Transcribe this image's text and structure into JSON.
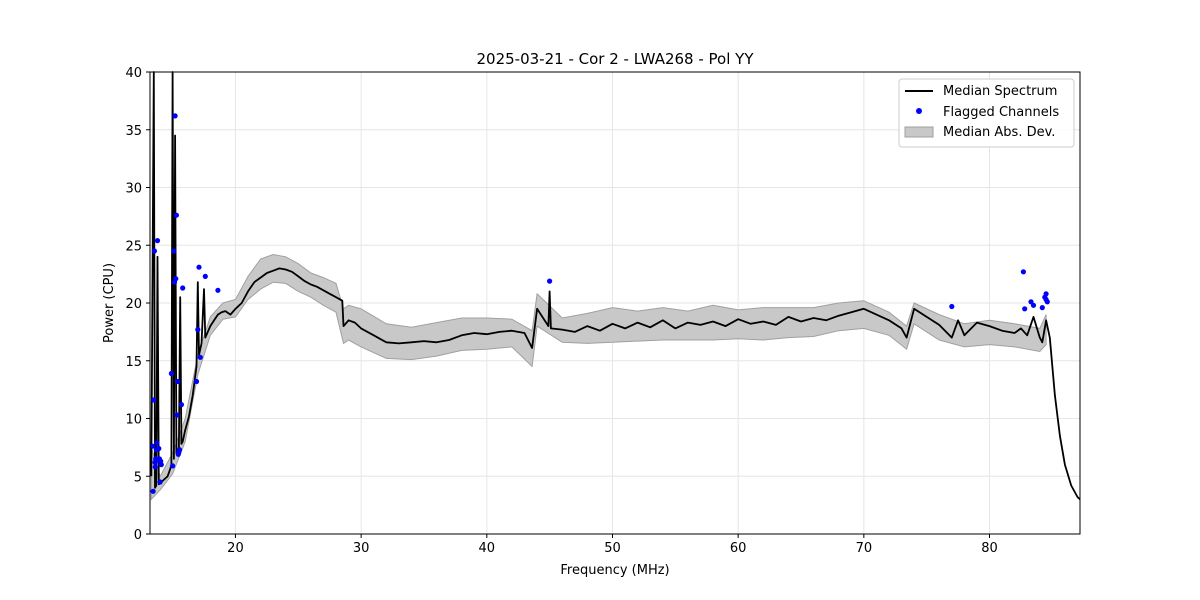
{
  "chart_data": {
    "type": "line",
    "title": "2025-03-21 - Cor 2 - LWA268 - Pol YY",
    "xlabel": "Frequency (MHz)",
    "ylabel": "Power (CPU)",
    "xlim": [
      13.2,
      87.2
    ],
    "ylim": [
      0,
      40
    ],
    "xticks": [
      20,
      30,
      40,
      50,
      60,
      70,
      80
    ],
    "yticks": [
      0,
      5,
      10,
      15,
      20,
      25,
      30,
      35,
      40
    ],
    "grid": true,
    "legend_position": "top-right",
    "legend": {
      "median": "Median Spectrum",
      "flagged": "Flagged Channels",
      "mad": "Median Abs. Dev."
    },
    "colors": {
      "median": "#000000",
      "flagged": "#0000ff",
      "mad": "#c8c8c8",
      "mad_edge": "#a0a0a0",
      "grid": "#e6e6e6"
    },
    "series": [
      {
        "name": "Median Spectrum",
        "x": [
          13.3,
          13.5,
          13.6,
          13.7,
          13.8,
          13.9,
          14.0,
          14.1,
          14.2,
          14.4,
          14.6,
          14.8,
          14.9,
          15.0,
          15.1,
          15.2,
          15.3,
          15.4,
          15.5,
          15.6,
          15.7,
          15.8,
          16.0,
          16.3,
          16.6,
          16.9,
          17.0,
          17.1,
          17.3,
          17.5,
          17.6,
          17.8,
          18.0,
          18.3,
          18.6,
          18.9,
          19.2,
          19.6,
          20.0,
          20.5,
          21.0,
          21.5,
          22.0,
          22.5,
          23.0,
          23.5,
          24.0,
          24.5,
          25.0,
          25.5,
          26.0,
          26.5,
          27.0,
          27.5,
          28.0,
          28.5,
          28.6,
          29.0,
          29.5,
          30.0,
          31.0,
          32.0,
          33.0,
          34.0,
          35.0,
          36.0,
          37.0,
          38.0,
          39.0,
          40.0,
          41.0,
          42.0,
          43.0,
          43.6,
          44.0,
          44.9,
          45.0,
          45.1,
          46.0,
          47.0,
          48.0,
          49.0,
          50.0,
          51.0,
          52.0,
          53.0,
          54.0,
          55.0,
          56.0,
          57.0,
          58.0,
          59.0,
          60.0,
          61.0,
          62.0,
          63.0,
          64.0,
          65.0,
          66.0,
          67.0,
          68.0,
          69.0,
          70.0,
          71.0,
          72.0,
          73.0,
          73.4,
          74.0,
          75.0,
          76.0,
          77.0,
          77.5,
          78.0,
          79.0,
          80.0,
          81.0,
          82.0,
          82.5,
          83.0,
          83.5,
          84.0,
          84.2,
          84.5,
          84.8,
          85.2,
          85.6,
          86.0,
          86.5,
          87.0,
          87.2
        ],
        "values": [
          5.0,
          40.0,
          4.0,
          4.2,
          24.0,
          4.3,
          4.4,
          4.5,
          4.6,
          4.8,
          5.0,
          5.6,
          6.0,
          40.0,
          6.5,
          34.5,
          7.0,
          7.2,
          7.5,
          20.5,
          7.8,
          8.0,
          9.0,
          10.2,
          12.0,
          14.5,
          21.8,
          15.5,
          16.5,
          21.2,
          17.0,
          17.5,
          18.0,
          18.5,
          19.0,
          19.2,
          19.3,
          19.0,
          19.5,
          20.0,
          21.0,
          21.8,
          22.2,
          22.6,
          22.8,
          23.0,
          22.9,
          22.7,
          22.3,
          21.9,
          21.6,
          21.4,
          21.1,
          20.8,
          20.5,
          20.2,
          18.0,
          18.5,
          18.3,
          17.8,
          17.2,
          16.6,
          16.5,
          16.6,
          16.7,
          16.6,
          16.8,
          17.2,
          17.4,
          17.3,
          17.5,
          17.6,
          17.4,
          16.1,
          19.5,
          18.0,
          21.0,
          17.8,
          17.7,
          17.5,
          18.0,
          17.6,
          18.2,
          17.8,
          18.3,
          17.9,
          18.5,
          17.8,
          18.3,
          18.1,
          18.4,
          18.0,
          18.6,
          18.2,
          18.4,
          18.1,
          18.8,
          18.4,
          18.7,
          18.5,
          18.9,
          19.2,
          19.5,
          19.0,
          18.5,
          17.8,
          17.0,
          19.5,
          18.8,
          18.1,
          17.0,
          18.5,
          17.2,
          18.3,
          18.0,
          17.6,
          17.4,
          17.8,
          17.2,
          18.8,
          17.0,
          16.6,
          18.5,
          17.0,
          12.0,
          8.5,
          6.0,
          4.2,
          3.2,
          3.0
        ]
      }
    ],
    "mad_band": {
      "name": "Median Abs. Dev.",
      "x": [
        13.3,
        14.0,
        15.0,
        16.0,
        17.0,
        18.0,
        19.0,
        20.0,
        21.0,
        22.0,
        23.0,
        24.0,
        25.0,
        26.0,
        27.0,
        28.0,
        28.6,
        29.0,
        30.0,
        32.0,
        34.0,
        36.0,
        38.0,
        40.0,
        42.0,
        43.6,
        44.0,
        46.0,
        48.0,
        50.0,
        52.0,
        54.0,
        56.0,
        58.0,
        60.0,
        62.0,
        64.0,
        66.0,
        68.0,
        70.0,
        72.0,
        73.4,
        74.0,
        76.0,
        78.0,
        80.0,
        82.0,
        84.0,
        84.5
      ],
      "low": [
        3.0,
        3.8,
        5.2,
        8.0,
        13.8,
        17.2,
        18.6,
        18.8,
        20.3,
        21.2,
        21.8,
        21.7,
        21.0,
        20.5,
        19.8,
        19.2,
        16.5,
        16.8,
        16.2,
        15.2,
        15.1,
        15.4,
        15.9,
        16.0,
        16.2,
        14.5,
        18.0,
        16.6,
        16.5,
        16.6,
        16.7,
        16.8,
        16.8,
        16.8,
        16.9,
        16.8,
        17.0,
        17.1,
        17.6,
        17.8,
        17.2,
        16.0,
        18.2,
        16.8,
        16.2,
        16.4,
        16.2,
        15.8,
        16.4
      ],
      "high": [
        7.5,
        5.0,
        7.0,
        10.0,
        15.5,
        18.8,
        20.0,
        20.3,
        22.3,
        23.8,
        24.2,
        24.0,
        23.4,
        22.6,
        22.2,
        21.7,
        19.5,
        19.8,
        19.5,
        18.2,
        17.9,
        18.3,
        18.7,
        18.7,
        18.6,
        17.6,
        20.8,
        18.7,
        19.1,
        19.6,
        19.3,
        19.6,
        19.3,
        19.8,
        19.4,
        19.6,
        19.6,
        19.6,
        20.0,
        20.2,
        19.2,
        18.0,
        20.0,
        19.0,
        18.2,
        18.5,
        18.2,
        17.8,
        19.0
      ]
    },
    "flagged_channels": {
      "name": "Flagged Channels",
      "x": [
        13.4,
        13.45,
        13.5,
        13.55,
        13.6,
        13.62,
        13.65,
        13.7,
        13.75,
        13.8,
        13.85,
        13.9,
        13.95,
        14.0,
        14.05,
        14.1,
        14.9,
        15.0,
        15.1,
        15.15,
        15.2,
        15.25,
        15.3,
        15.35,
        15.4,
        15.45,
        15.5,
        15.55,
        15.7,
        15.8,
        16.9,
        17.0,
        17.1,
        17.2,
        17.6,
        18.6,
        45.0,
        77.0,
        82.7,
        82.8,
        83.3,
        83.5,
        84.2,
        84.4,
        84.5,
        84.5,
        84.6
      ],
      "values": [
        7.6,
        3.7,
        11.6,
        24.5,
        6.2,
        5.8,
        6.5,
        7.3,
        7.9,
        25.4,
        6.4,
        7.4,
        6.5,
        4.5,
        6.3,
        6.0,
        13.9,
        5.9,
        24.5,
        21.8,
        36.2,
        22.1,
        27.6,
        10.3,
        13.2,
        6.9,
        7.1,
        7.3,
        11.2,
        21.3,
        13.2,
        17.7,
        23.1,
        15.3,
        22.3,
        21.1,
        21.9,
        19.7,
        22.7,
        19.5,
        20.1,
        19.8,
        19.6,
        20.5,
        20.8,
        20.3,
        20.1
      ]
    }
  }
}
